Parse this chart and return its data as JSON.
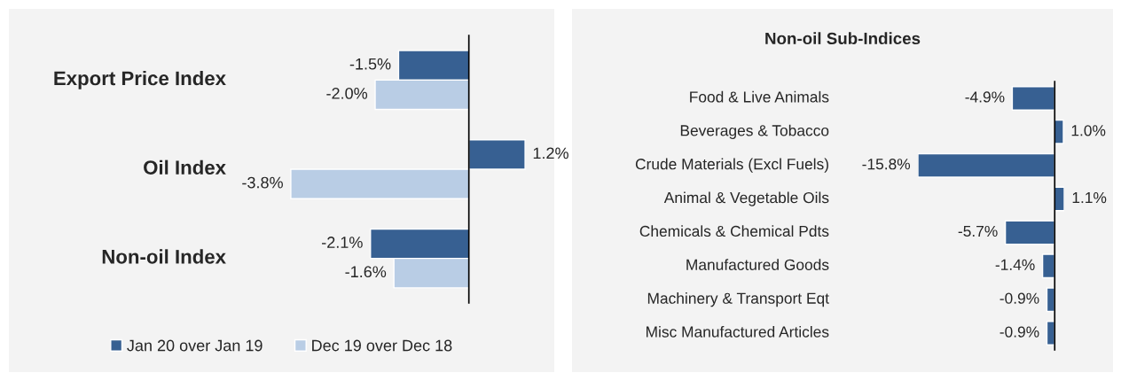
{
  "chart_data": [
    {
      "type": "bar",
      "orientation": "horizontal",
      "categories": [
        "Export Price Index",
        "Oil Index",
        "Non-oil Index"
      ],
      "series": [
        {
          "name": "Jan 20 over Jan 19",
          "color": "#376092",
          "values": [
            -1.5,
            1.2,
            -2.1
          ],
          "value_labels": [
            "-1.5%",
            "1.2%",
            "-2.1%"
          ]
        },
        {
          "name": "Dec 19 over Dec 18",
          "color": "#b9cde5",
          "values": [
            -2.0,
            -3.8,
            -1.6
          ],
          "value_labels": [
            "-2.0%",
            "-3.8%",
            "-1.6%"
          ]
        }
      ],
      "legend": "bottom",
      "tick_labels": false
    },
    {
      "type": "bar",
      "orientation": "horizontal",
      "title": "Non-oil Sub-Indices",
      "categories": [
        "Food & Live Animals",
        "Beverages & Tobacco",
        "Crude Materials (Excl Fuels)",
        "Animal & Vegetable Oils",
        "Chemicals & Chemical Pdts",
        "Manufactured Goods",
        "Machinery & Transport Eqt",
        "Misc Manufactured Articles"
      ],
      "series": [
        {
          "color": "#376092",
          "values": [
            -4.9,
            1.0,
            -15.8,
            1.1,
            -5.7,
            -1.4,
            -0.9,
            -0.9
          ],
          "value_labels": [
            "-4.9%",
            "1.0%",
            "-15.8%",
            "1.1%",
            "-5.7%",
            "-1.4%",
            "-0.9%",
            "-0.9%"
          ]
        }
      ],
      "legend": false,
      "tick_labels": false
    }
  ]
}
